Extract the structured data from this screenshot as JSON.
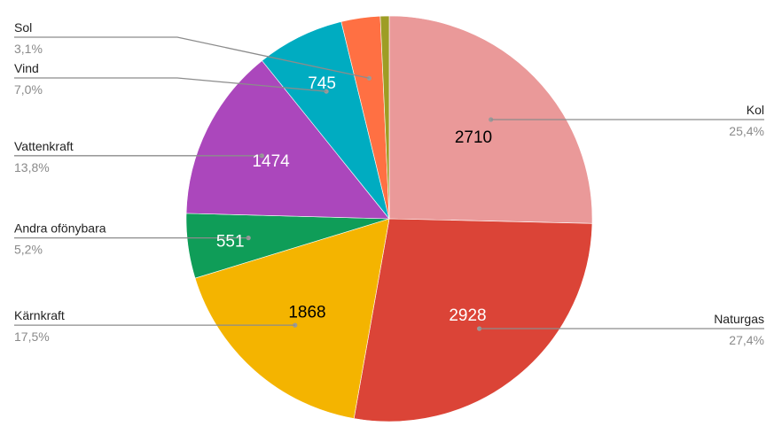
{
  "chart_data": {
    "type": "pie",
    "slices": [
      {
        "label": "Kol",
        "value": 2710,
        "percent": "25,4%",
        "color": "#ea9999",
        "value_color": "#000000",
        "show_value": true
      },
      {
        "label": "Naturgas",
        "value": 2928,
        "percent": "27,4%",
        "color": "#db4437",
        "value_color": "#ffffff",
        "show_value": true
      },
      {
        "label": "Kärnkraft",
        "value": 1868,
        "percent": "17,5%",
        "color": "#f4b400",
        "value_color": "#000000",
        "show_value": true
      },
      {
        "label": "Andra ofönybara",
        "value": 551,
        "percent": "5,2%",
        "color": "#0f9d58",
        "value_color": "#ffffff",
        "show_value": true
      },
      {
        "label": "Vattenkraft",
        "value": 1474,
        "percent": "13,8%",
        "color": "#ab47bc",
        "value_color": "#ffffff",
        "show_value": true
      },
      {
        "label": "Vind",
        "value": 745,
        "percent": "7,0%",
        "color": "#00acc1",
        "value_color": "#ffffff",
        "show_value": true
      },
      {
        "label": "Sol",
        "value": 331,
        "percent": "3,1%",
        "color": "#ff7043",
        "value_color": "#ffffff",
        "show_value": false
      },
      {
        "label": "",
        "value": 75,
        "percent": "",
        "color": "#9e9d24",
        "value_color": "#ffffff",
        "show_value": false
      }
    ],
    "start_angle": "12 o'clock",
    "direction": "clockwise",
    "legend": "none"
  }
}
